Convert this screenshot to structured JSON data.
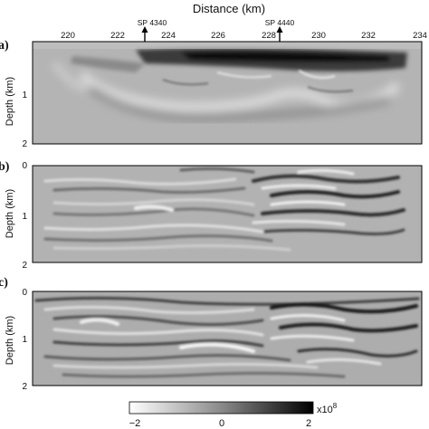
{
  "figure": {
    "x_axis_title": "Distance (km)",
    "x_ticks": [
      "220",
      "222",
      "224",
      "226",
      "228",
      "230",
      "232",
      "234"
    ],
    "markers": [
      {
        "label": "SP 4340",
        "x_km": 223.3
      },
      {
        "label": "SP 4440",
        "x_km": 228.3
      }
    ],
    "panels": [
      {
        "letter": "a)",
        "y_label": "Depth (km)",
        "y_ticks": [
          "1",
          "2"
        ]
      },
      {
        "letter": "b)",
        "y_label": "Depth (km)",
        "y_ticks": [
          "0",
          "1",
          "2"
        ]
      },
      {
        "letter": "c)",
        "y_label": "Depth (km)",
        "y_ticks": [
          "0",
          "1",
          "2"
        ]
      }
    ],
    "colorbar": {
      "ticks": [
        "−2",
        "0",
        "2"
      ],
      "min": -2,
      "max": 2,
      "scale_label": "x10",
      "scale_exponent": "8"
    }
  }
}
